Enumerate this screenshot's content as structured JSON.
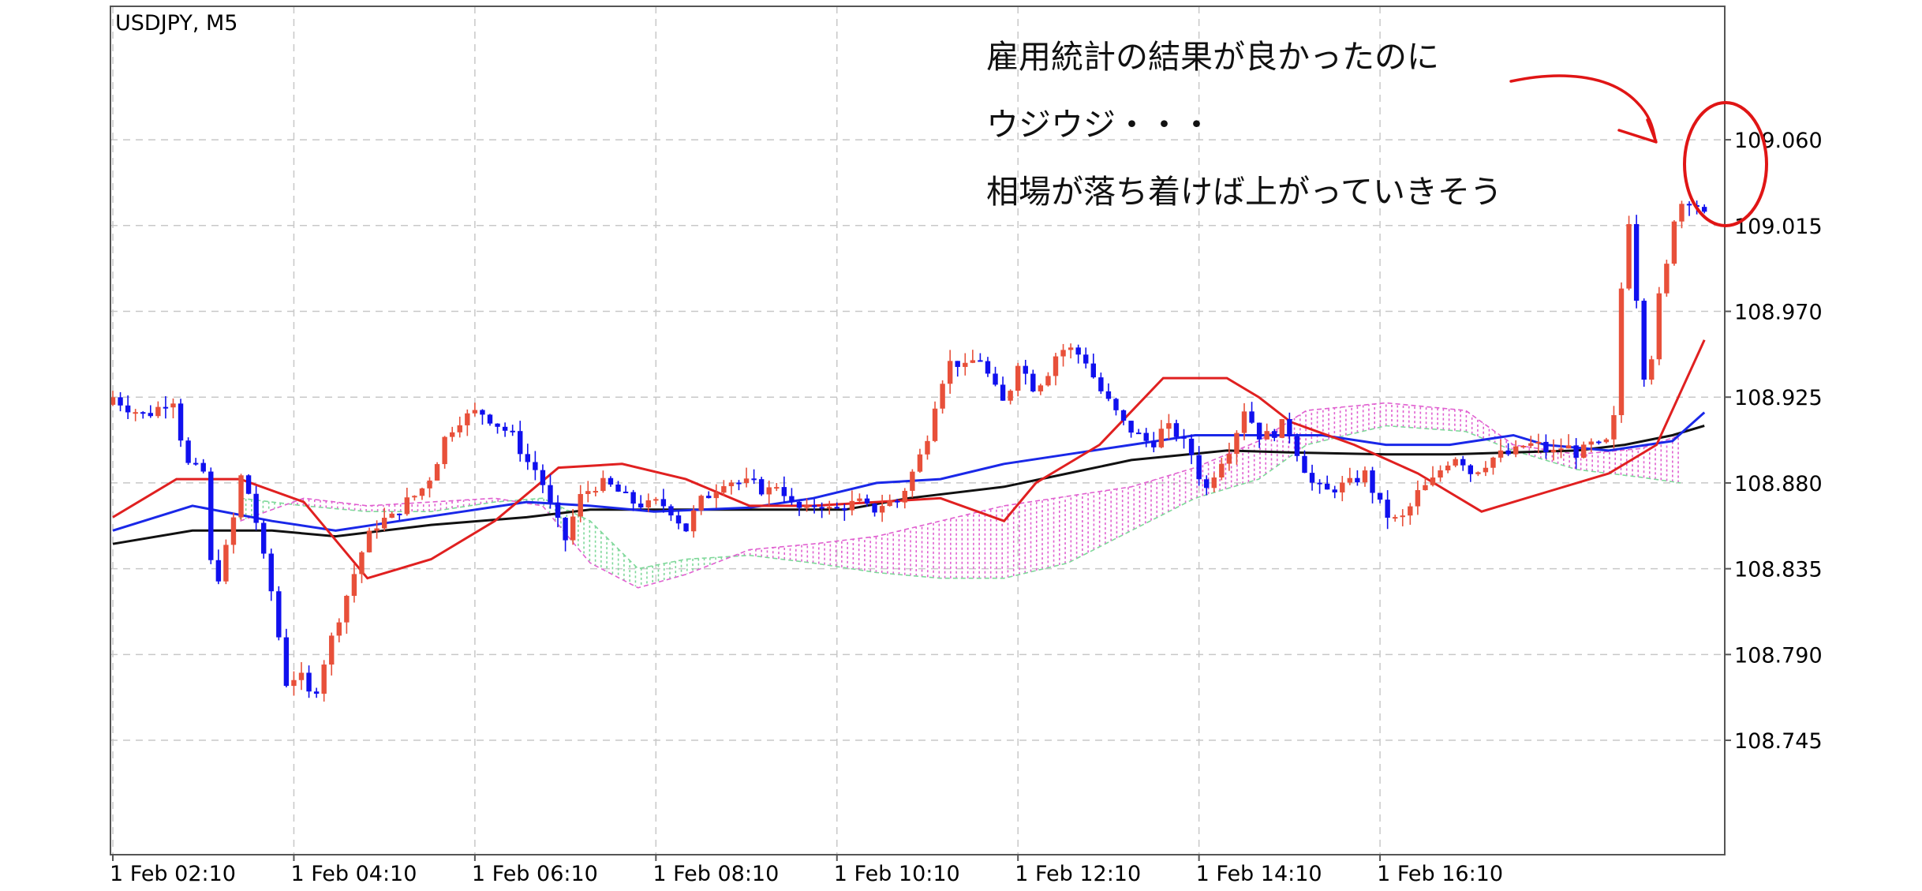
{
  "chart_data": {
    "type": "candlestick",
    "symbol_label": "USDJPY, M5",
    "ylim": [
      108.685,
      109.13
    ],
    "y_ticks": [
      "109.060",
      "109.015",
      "108.970",
      "108.925",
      "108.880",
      "108.835",
      "108.790",
      "108.745"
    ],
    "y_tick_values": [
      109.06,
      109.015,
      108.97,
      108.925,
      108.88,
      108.835,
      108.79,
      108.745
    ],
    "x_ticks": [
      "1 Feb 02:10",
      "1 Feb 04:10",
      "1 Feb 06:10",
      "1 Feb 08:10",
      "1 Feb 10:10",
      "1 Feb 12:10",
      "1 Feb 14:10",
      "1 Feb 16:10"
    ],
    "bar_count": 212,
    "bars_per_tick": 24,
    "grid": true,
    "annotations": [
      "雇用統計の結果が良かったのに",
      "ウジウジ・・・",
      "相場が落ち着けば上がっていきそう"
    ],
    "colors": {
      "bull": "#e8503a",
      "bear": "#1010ee",
      "ma_fast": "#e02020",
      "ma_mid": "#1a28e8",
      "ma_slow": "#111111",
      "cloud_bull": "#7fd89a",
      "cloud_bear": "#e060d0",
      "markup": "#e01515"
    },
    "anchor_closes": [
      [
        0,
        108.925
      ],
      [
        2,
        108.92
      ],
      [
        5,
        108.915
      ],
      [
        9,
        108.925
      ],
      [
        11,
        108.89
      ],
      [
        14,
        108.885
      ],
      [
        15,
        108.82
      ],
      [
        18,
        108.858
      ],
      [
        19,
        108.885
      ],
      [
        21,
        108.87
      ],
      [
        22,
        108.85
      ],
      [
        24,
        108.82
      ],
      [
        26,
        108.775
      ],
      [
        28,
        108.78
      ],
      [
        30,
        108.765
      ],
      [
        32,
        108.79
      ],
      [
        34,
        108.81
      ],
      [
        36,
        108.83
      ],
      [
        38,
        108.85
      ],
      [
        40,
        108.86
      ],
      [
        42,
        108.862
      ],
      [
        44,
        108.87
      ],
      [
        46,
        108.875
      ],
      [
        48,
        108.885
      ],
      [
        50,
        108.905
      ],
      [
        52,
        108.913
      ],
      [
        55,
        108.918
      ],
      [
        58,
        108.91
      ],
      [
        60,
        108.905
      ],
      [
        62,
        108.892
      ],
      [
        64,
        108.885
      ],
      [
        66,
        108.865
      ],
      [
        68,
        108.85
      ],
      [
        70,
        108.872
      ],
      [
        72,
        108.878
      ],
      [
        74,
        108.88
      ],
      [
        76,
        108.875
      ],
      [
        78,
        108.87
      ],
      [
        80,
        108.868
      ],
      [
        82,
        108.87
      ],
      [
        84,
        108.865
      ],
      [
        86,
        108.855
      ],
      [
        88,
        108.87
      ],
      [
        90,
        108.875
      ],
      [
        92,
        108.882
      ],
      [
        94,
        108.88
      ],
      [
        96,
        108.88
      ],
      [
        98,
        108.875
      ],
      [
        100,
        108.88
      ],
      [
        102,
        108.868
      ],
      [
        104,
        108.865
      ],
      [
        106,
        108.87
      ],
      [
        108,
        108.865
      ],
      [
        110,
        108.868
      ],
      [
        112,
        108.87
      ],
      [
        114,
        108.865
      ],
      [
        116,
        108.87
      ],
      [
        118,
        108.87
      ],
      [
        120,
        108.885
      ],
      [
        122,
        108.9
      ],
      [
        124,
        108.93
      ],
      [
        126,
        108.945
      ],
      [
        128,
        108.94
      ],
      [
        130,
        108.947
      ],
      [
        132,
        108.932
      ],
      [
        134,
        108.92
      ],
      [
        136,
        108.945
      ],
      [
        138,
        108.93
      ],
      [
        140,
        108.935
      ],
      [
        142,
        108.95
      ],
      [
        144,
        108.95
      ],
      [
        146,
        108.945
      ],
      [
        148,
        108.93
      ],
      [
        150,
        108.92
      ],
      [
        152,
        108.91
      ],
      [
        154,
        108.905
      ],
      [
        156,
        108.9
      ],
      [
        158,
        108.91
      ],
      [
        160,
        108.905
      ],
      [
        162,
        108.895
      ],
      [
        164,
        108.875
      ],
      [
        166,
        108.89
      ],
      [
        168,
        108.9
      ],
      [
        170,
        108.92
      ],
      [
        172,
        108.905
      ],
      [
        174,
        108.905
      ],
      [
        176,
        108.912
      ],
      [
        178,
        108.895
      ],
      [
        180,
        108.88
      ],
      [
        182,
        108.875
      ],
      [
        184,
        108.878
      ],
      [
        186,
        108.88
      ],
      [
        188,
        108.885
      ],
      [
        190,
        108.87
      ],
      [
        192,
        108.86
      ],
      [
        194,
        108.862
      ],
      [
        196,
        108.875
      ],
      [
        198,
        108.88
      ],
      [
        200,
        108.89
      ],
      [
        202,
        108.895
      ],
      [
        204,
        108.885
      ],
      [
        206,
        108.89
      ],
      [
        208,
        108.895
      ],
      [
        210,
        108.895
      ],
      [
        212,
        108.9
      ],
      [
        214,
        108.9
      ],
      [
        216,
        108.895
      ],
      [
        218,
        108.9
      ],
      [
        220,
        108.895
      ],
      [
        222,
        108.9
      ],
      [
        224,
        108.898
      ],
      [
        226,
        108.92
      ],
      [
        227,
        109.035
      ],
      [
        228,
        109.01
      ],
      [
        229,
        108.97
      ],
      [
        230,
        108.935
      ],
      [
        231,
        108.945
      ],
      [
        232,
        108.975
      ],
      [
        233,
        108.985
      ],
      [
        234,
        109.01
      ],
      [
        235,
        109.03
      ],
      [
        236,
        109.025
      ],
      [
        237,
        109.03
      ],
      [
        238,
        109.025
      ],
      [
        239,
        109.02
      ]
    ],
    "cloud_span": [
      0.08,
      0.985
    ],
    "cloud_a": [
      [
        0.08,
        108.872
      ],
      [
        0.12,
        108.868
      ],
      [
        0.16,
        108.865
      ],
      [
        0.2,
        108.865
      ],
      [
        0.24,
        108.87
      ],
      [
        0.27,
        108.872
      ],
      [
        0.3,
        108.86
      ],
      [
        0.33,
        108.835
      ],
      [
        0.36,
        108.84
      ],
      [
        0.4,
        108.842
      ],
      [
        0.44,
        108.838
      ],
      [
        0.48,
        108.833
      ],
      [
        0.52,
        108.83
      ],
      [
        0.56,
        108.83
      ],
      [
        0.6,
        108.838
      ],
      [
        0.64,
        108.855
      ],
      [
        0.68,
        108.872
      ],
      [
        0.72,
        108.882
      ],
      [
        0.75,
        108.9
      ],
      [
        0.8,
        108.91
      ],
      [
        0.85,
        108.907
      ],
      [
        0.88,
        108.897
      ],
      [
        0.92,
        108.887
      ],
      [
        0.96,
        108.883
      ],
      [
        0.985,
        108.88
      ]
    ],
    "cloud_b": [
      [
        0.08,
        108.86
      ],
      [
        0.12,
        108.872
      ],
      [
        0.16,
        108.868
      ],
      [
        0.2,
        108.87
      ],
      [
        0.24,
        108.872
      ],
      [
        0.27,
        108.868
      ],
      [
        0.3,
        108.838
      ],
      [
        0.33,
        108.825
      ],
      [
        0.36,
        108.832
      ],
      [
        0.4,
        108.845
      ],
      [
        0.44,
        108.848
      ],
      [
        0.48,
        108.852
      ],
      [
        0.52,
        108.86
      ],
      [
        0.56,
        108.868
      ],
      [
        0.6,
        108.873
      ],
      [
        0.64,
        108.878
      ],
      [
        0.68,
        108.888
      ],
      [
        0.72,
        108.902
      ],
      [
        0.75,
        108.918
      ],
      [
        0.8,
        108.922
      ],
      [
        0.85,
        108.918
      ],
      [
        0.88,
        108.9
      ],
      [
        0.92,
        108.895
      ],
      [
        0.96,
        108.898
      ],
      [
        0.985,
        108.905
      ]
    ],
    "ma_fast": [
      [
        0,
        108.862
      ],
      [
        0.04,
        108.882
      ],
      [
        0.08,
        108.882
      ],
      [
        0.12,
        108.87
      ],
      [
        0.16,
        108.83
      ],
      [
        0.2,
        108.84
      ],
      [
        0.24,
        108.86
      ],
      [
        0.28,
        108.888
      ],
      [
        0.32,
        108.89
      ],
      [
        0.36,
        108.882
      ],
      [
        0.4,
        108.868
      ],
      [
        0.44,
        108.868
      ],
      [
        0.48,
        108.87
      ],
      [
        0.52,
        108.872
      ],
      [
        0.56,
        108.86
      ],
      [
        0.58,
        108.88
      ],
      [
        0.62,
        108.9
      ],
      [
        0.66,
        108.935
      ],
      [
        0.7,
        108.935
      ],
      [
        0.72,
        108.925
      ],
      [
        0.74,
        108.912
      ],
      [
        0.78,
        108.9
      ],
      [
        0.82,
        108.885
      ],
      [
        0.86,
        108.865
      ],
      [
        0.9,
        108.875
      ],
      [
        0.94,
        108.885
      ],
      [
        0.97,
        108.9
      ],
      [
        1.0,
        108.955
      ]
    ],
    "ma_mid": [
      [
        0,
        108.855
      ],
      [
        0.05,
        108.868
      ],
      [
        0.1,
        108.86
      ],
      [
        0.14,
        108.855
      ],
      [
        0.18,
        108.86
      ],
      [
        0.22,
        108.865
      ],
      [
        0.26,
        108.87
      ],
      [
        0.3,
        108.868
      ],
      [
        0.34,
        108.865
      ],
      [
        0.4,
        108.867
      ],
      [
        0.44,
        108.872
      ],
      [
        0.48,
        108.88
      ],
      [
        0.52,
        108.882
      ],
      [
        0.56,
        108.89
      ],
      [
        0.6,
        108.895
      ],
      [
        0.64,
        108.9
      ],
      [
        0.68,
        108.905
      ],
      [
        0.72,
        108.905
      ],
      [
        0.76,
        108.905
      ],
      [
        0.8,
        108.9
      ],
      [
        0.84,
        108.9
      ],
      [
        0.88,
        108.905
      ],
      [
        0.9,
        108.9
      ],
      [
        0.94,
        108.897
      ],
      [
        0.98,
        108.902
      ],
      [
        1.0,
        108.917
      ]
    ],
    "ma_slow": [
      [
        0,
        108.848
      ],
      [
        0.05,
        108.855
      ],
      [
        0.1,
        108.855
      ],
      [
        0.14,
        108.852
      ],
      [
        0.2,
        108.858
      ],
      [
        0.26,
        108.862
      ],
      [
        0.3,
        108.866
      ],
      [
        0.36,
        108.866
      ],
      [
        0.4,
        108.866
      ],
      [
        0.46,
        108.866
      ],
      [
        0.5,
        108.872
      ],
      [
        0.56,
        108.878
      ],
      [
        0.6,
        108.885
      ],
      [
        0.64,
        108.892
      ],
      [
        0.7,
        108.897
      ],
      [
        0.74,
        108.896
      ],
      [
        0.8,
        108.895
      ],
      [
        0.84,
        108.895
      ],
      [
        0.88,
        108.896
      ],
      [
        0.92,
        108.897
      ],
      [
        0.95,
        108.9
      ],
      [
        0.98,
        108.905
      ],
      [
        1.0,
        108.91
      ]
    ]
  }
}
